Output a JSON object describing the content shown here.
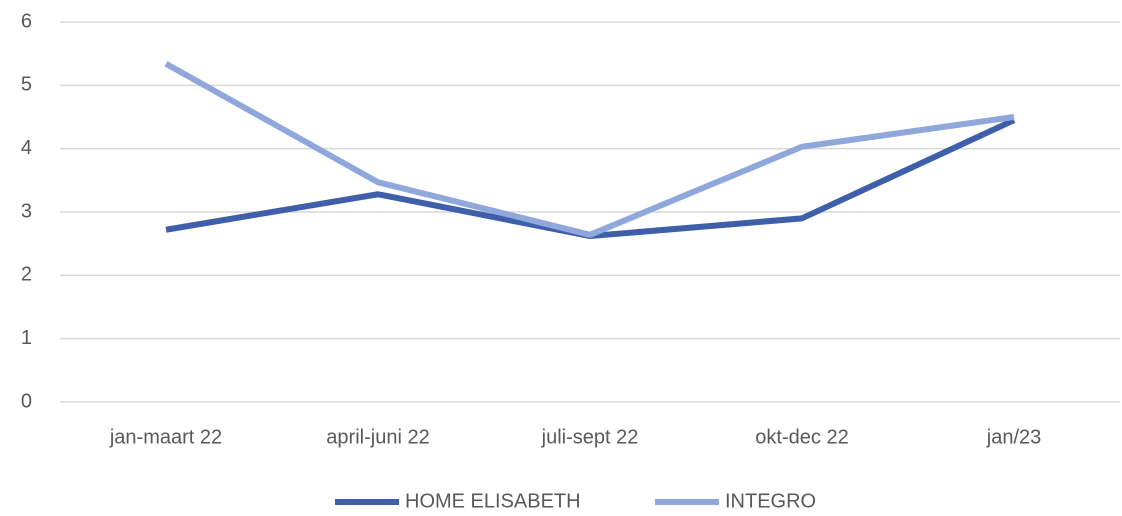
{
  "chart_data": {
    "type": "line",
    "categories": [
      "jan-maart 22",
      "april-juni 22",
      "juli-sept 22",
      "okt-dec 22",
      "jan/23"
    ],
    "series": [
      {
        "name": "HOME ELISABETH",
        "color": "#3f5fab",
        "values": [
          2.72,
          3.28,
          2.62,
          2.9,
          4.45
        ]
      },
      {
        "name": "INTEGRO",
        "color": "#8fa7db",
        "values": [
          5.34,
          3.47,
          2.64,
          4.03,
          4.5
        ]
      }
    ],
    "ylim": [
      0,
      6
    ],
    "yticks": [
      0,
      1,
      2,
      3,
      4,
      5,
      6
    ],
    "grid": true,
    "legend": "bottom"
  }
}
